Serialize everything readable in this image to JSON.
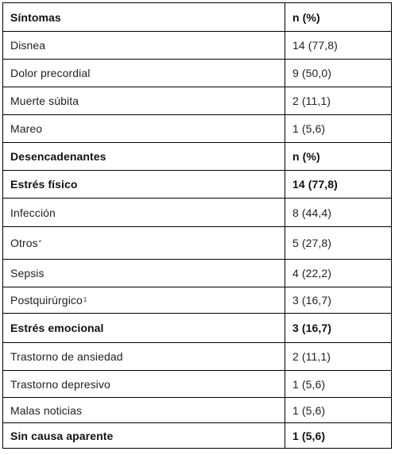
{
  "table": {
    "rows": [
      {
        "label": "Síntomas",
        "value": "n (%)",
        "bold": true,
        "sup": ""
      },
      {
        "label": "Disnea",
        "value": "14 (77,8)",
        "bold": false,
        "sup": ""
      },
      {
        "label": "Dolor precordial",
        "value": "9 (50,0)",
        "bold": false,
        "sup": ""
      },
      {
        "label": "Muerte súbita",
        "value": "2 (11,1)",
        "bold": false,
        "sup": ""
      },
      {
        "label": "Mareo",
        "value": "1 (5,6)",
        "bold": false,
        "sup": ""
      },
      {
        "label": "Desencadenantes",
        "value": "n (%)",
        "bold": true,
        "sup": ""
      },
      {
        "label": "Estrés físico",
        "value": "14 (77,8)",
        "bold": true,
        "sup": ""
      },
      {
        "label": "Infección",
        "value": "8 (44,4)",
        "bold": false,
        "sup": ""
      },
      {
        "label": "Otros",
        "value": "5 (27,8)",
        "bold": false,
        "sup": "*"
      },
      {
        "label": "Sepsis",
        "value": "4 (22,2)",
        "bold": false,
        "sup": ""
      },
      {
        "label": "Postquirúrgico",
        "value": "3 (16,7)",
        "bold": false,
        "sup": "‡"
      },
      {
        "label": "Estrés emocional",
        "value": "3 (16,7)",
        "bold": true,
        "sup": ""
      },
      {
        "label": "Trastorno de ansiedad",
        "value": "2 (11,1)",
        "bold": false,
        "sup": ""
      },
      {
        "label": "Trastorno depresivo",
        "value": "1 (5,6)",
        "bold": false,
        "sup": ""
      },
      {
        "label": "Malas noticias",
        "value": "1 (5,6)",
        "bold": false,
        "sup": ""
      },
      {
        "label": "Sin causa aparente",
        "value": "1 (5,6)",
        "bold": true,
        "sup": ""
      }
    ]
  }
}
